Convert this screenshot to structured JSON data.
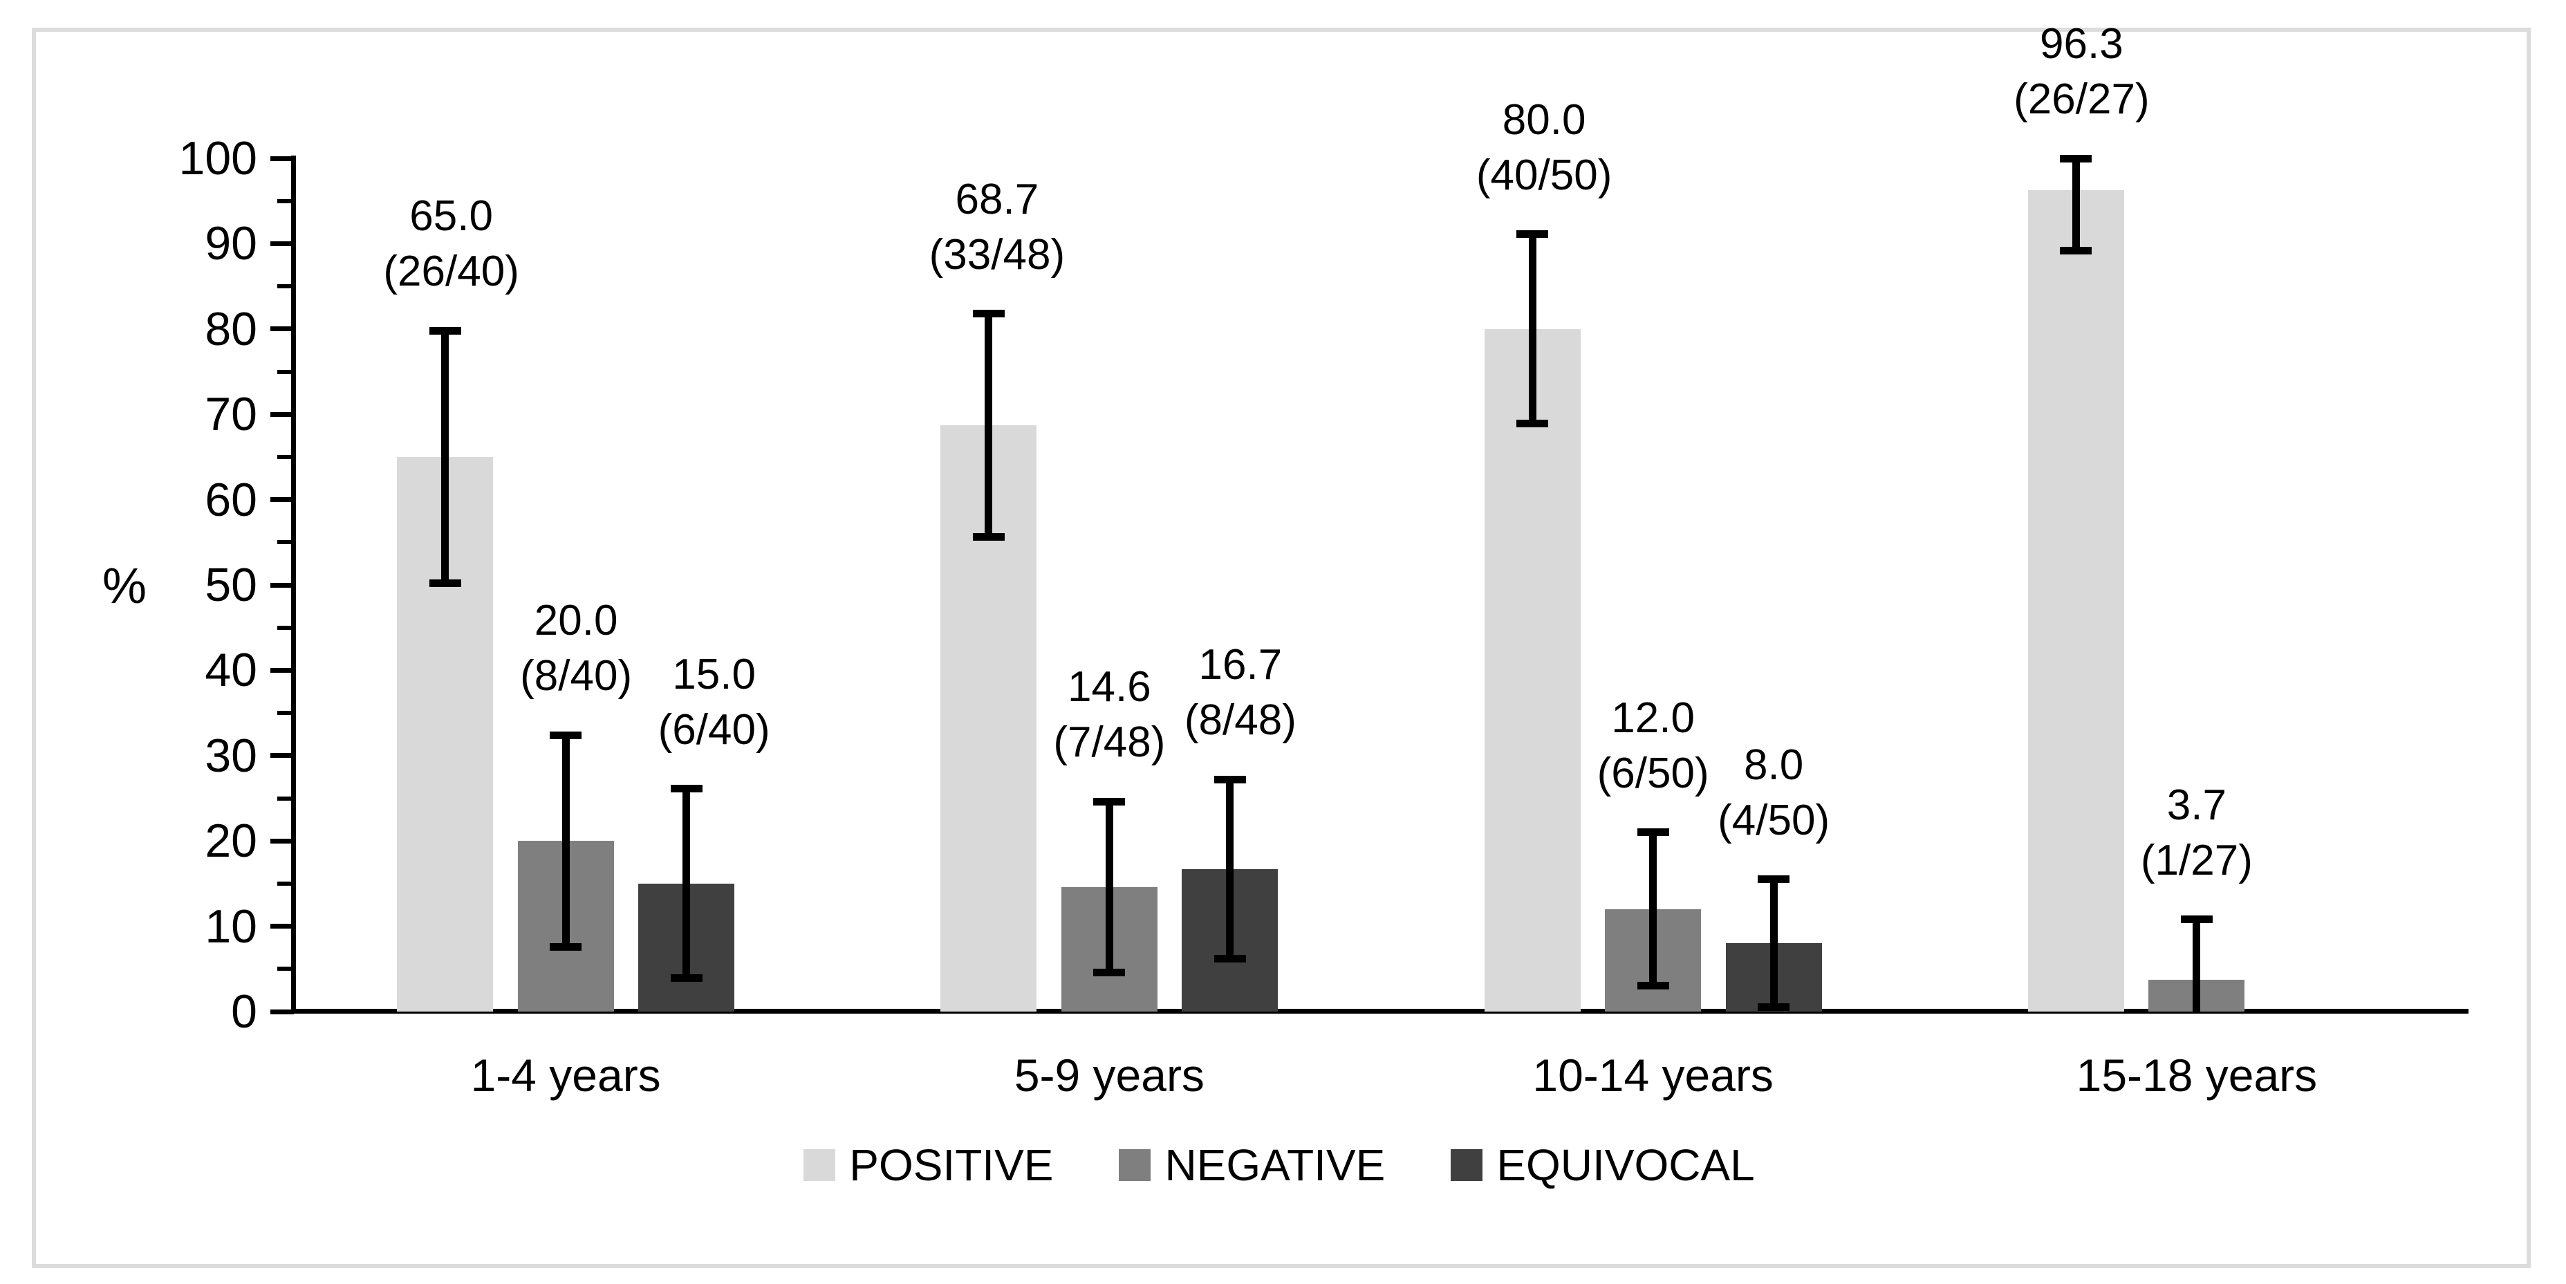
{
  "chart_data": {
    "type": "bar",
    "title": "",
    "ylabel": "%",
    "ylim": [
      0,
      100
    ],
    "y_ticks": [
      "0",
      "10",
      "20",
      "30",
      "40",
      "50",
      "60",
      "70",
      "80",
      "90",
      "100"
    ],
    "y_minor_tick_step": 5,
    "grid": "off",
    "legend_position": "bottom",
    "error_bars": "95% CI",
    "categories": [
      "1-4 years",
      "5-9 years",
      "10-14 years",
      "15-18 years"
    ],
    "series": [
      {
        "name": "POSITIVE",
        "color": "#d9d9d9",
        "values": [
          65.0,
          68.7,
          80.0,
          96.3
        ],
        "value_labels": [
          "65.0",
          "68.7",
          "80.0",
          "96.3"
        ],
        "fraction_labels": [
          "(26/40)",
          "(33/48)",
          "(40/50)",
          "(26/27)"
        ],
        "error_low": [
          50.2,
          55.6,
          68.9,
          89.2
        ],
        "error_high": [
          79.8,
          81.8,
          91.1,
          100.0
        ],
        "label_dx": [
          9,
          12,
          17,
          8
        ]
      },
      {
        "name": "NEGATIVE",
        "color": "#7f7f7f",
        "values": [
          20.0,
          14.6,
          12.0,
          3.7
        ],
        "value_labels": [
          "20.0",
          "14.6",
          "12.0",
          "3.7"
        ],
        "fraction_labels": [
          "(8/40)",
          "(7/48)",
          "(6/50)",
          "(1/27)"
        ],
        "error_low": [
          7.6,
          4.6,
          3.0,
          0.0
        ],
        "error_high": [
          32.4,
          24.6,
          21.0,
          10.8
        ],
        "label_dx": [
          15,
          0,
          0,
          0
        ]
      },
      {
        "name": "EQUIVOCAL",
        "color": "#404040",
        "values": [
          15.0,
          16.7,
          8.0,
          null
        ],
        "value_labels": [
          "15.0",
          "16.7",
          "8.0",
          null
        ],
        "fraction_labels": [
          "(6/40)",
          "(8/48)",
          "(4/50)",
          null
        ],
        "error_low": [
          3.9,
          6.2,
          0.5,
          null
        ],
        "error_high": [
          26.1,
          27.2,
          15.5,
          null
        ],
        "label_dx": [
          40,
          15,
          0,
          0
        ]
      }
    ]
  },
  "frame": {
    "border_color": "#dcdcdc"
  },
  "colors": {
    "axis": "#000000",
    "text": "#000000",
    "background": "#ffffff"
  }
}
